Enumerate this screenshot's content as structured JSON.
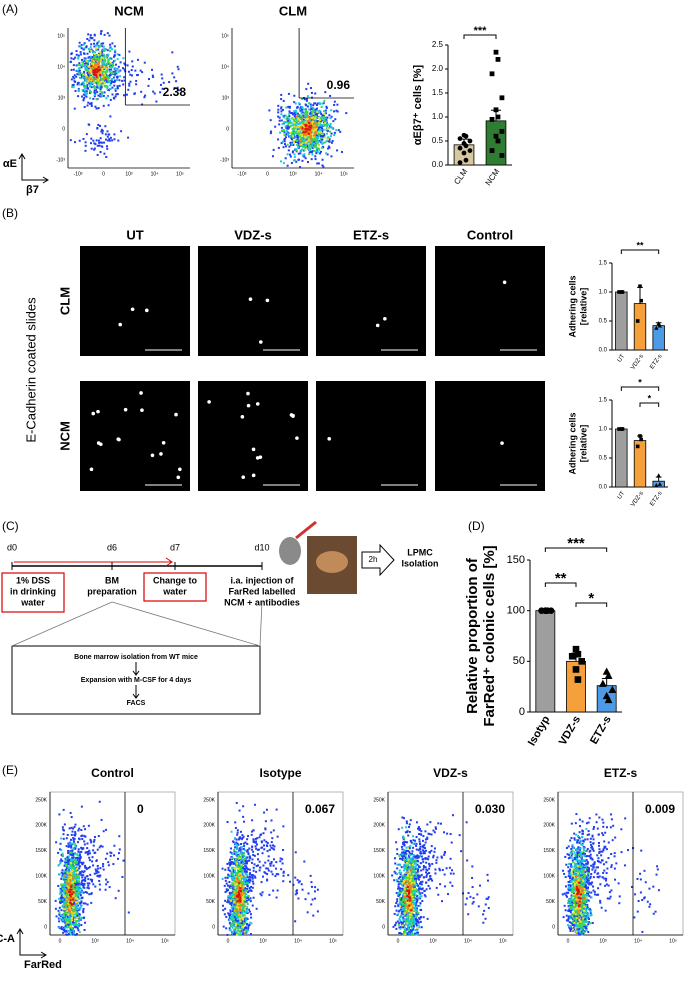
{
  "panel_labels": [
    "(A)",
    "(B)",
    "(C)",
    "(D)",
    "(E)"
  ],
  "panel_a": {
    "flow_titles": [
      "NCM",
      "CLM"
    ],
    "gates": [
      "2.38",
      "0.96"
    ],
    "y_axis_label": "αE",
    "x_axis_label": "β7",
    "yticks": [
      "10⁵",
      "10⁴",
      "10³",
      "0",
      "-10³"
    ],
    "xticks": [
      "-10³",
      "0",
      "10³",
      "10⁴",
      "10⁵"
    ]
  },
  "panel_b": {
    "columns": [
      "UT",
      "VDZ-s",
      "ETZ-s",
      "Control"
    ],
    "rows": [
      "CLM",
      "NCM"
    ],
    "side_label": "E-Cadherin coated slides"
  },
  "panel_c": {
    "days": [
      "d0",
      "d6",
      "d7",
      "d10"
    ],
    "steps": [
      [
        "1% DSS",
        "in drinking",
        "water"
      ],
      [
        "BM",
        "preparation"
      ],
      [
        "Change to",
        "water"
      ],
      [
        "i.a. injection of",
        "FarRed labelled",
        "NCM + antibodies"
      ]
    ],
    "time": "2h",
    "outcome": [
      "LPMC",
      "Isolation"
    ],
    "bm_box": [
      "Bone marrow isolation from WT mice",
      "Expansion with M-CSF for 4 days",
      "FACS"
    ]
  },
  "panel_e": {
    "titles": [
      "Control",
      "Isotype",
      "VDZ-s",
      "ETZ-s"
    ],
    "gates": [
      "0",
      "0.067",
      "0.030",
      "0.009"
    ],
    "y_axis_label": "SSC-A",
    "x_axis_label": "FarRed",
    "yticks": [
      "250K",
      "200K",
      "150K",
      "100K",
      "50K",
      "0"
    ],
    "xticks": [
      "0",
      "10³",
      "10⁴",
      "10⁵"
    ]
  },
  "chart_data": [
    {
      "type": "bar",
      "ylabel": [
        "αEβ7⁺ cells [%]"
      ],
      "categories": [
        "CLM",
        "NCM"
      ],
      "colors": [
        "#d8c8a0",
        "#2e7d32"
      ],
      "values": [
        0.42,
        0.92
      ],
      "errors": [
        0.12,
        0.22
      ],
      "points": [
        [
          0.62,
          0.6,
          0.55,
          0.5,
          0.45,
          0.4,
          0.35,
          0.3,
          0.25,
          0.1,
          0.05
        ],
        [
          2.35,
          2.2,
          1.9,
          1.4,
          1.15,
          1.0,
          0.95,
          0.7,
          0.6,
          0.5,
          0.3,
          0.2
        ]
      ],
      "ylim": [
        0,
        2.5
      ],
      "yticks": [
        {
          "value": 0,
          "label": "0.0"
        },
        {
          "value": 0.5,
          "label": "0.5"
        },
        {
          "value": 1,
          "label": "1.0"
        },
        {
          "value": 1.5,
          "label": "1.5"
        },
        {
          "value": 2,
          "label": "2.0"
        },
        {
          "value": 2.5,
          "label": "2.5"
        }
      ],
      "annotations": [
        "***"
      ]
    },
    {
      "type": "bar",
      "ylabel": [
        "Adhering cells",
        "[relative]"
      ],
      "categories": [
        "UT",
        "VDZ-s",
        "ETZ-s"
      ],
      "colors": [
        "#9e9e9e",
        "#f5a03a",
        "#4d9be6"
      ],
      "values": [
        1.0,
        0.8,
        0.42
      ],
      "errors": [
        0,
        0.28,
        0.05
      ],
      "points": [
        [
          1,
          1,
          1
        ],
        [
          1.1,
          0.85,
          0.5
        ],
        [
          0.46,
          0.42,
          0.38
        ]
      ],
      "ylim": [
        0,
        1.5
      ],
      "yticks": [
        {
          "value": 0,
          "label": "0.0"
        },
        {
          "value": 0.5,
          "label": "0.5"
        },
        {
          "value": 1,
          "label": "1.0"
        },
        {
          "value": 1.5,
          "label": "1.5"
        }
      ],
      "annotations": [
        "**"
      ]
    },
    {
      "type": "bar",
      "ylabel": [
        "Adhering cells",
        "[relative]"
      ],
      "categories": [
        "UT",
        "VDZ-s",
        "ETZ-s"
      ],
      "colors": [
        "#9e9e9e",
        "#f5a03a",
        "#4d9be6"
      ],
      "values": [
        1.0,
        0.8,
        0.1
      ],
      "errors": [
        0,
        0.08,
        0.07
      ],
      "points": [
        [
          1,
          1,
          1
        ],
        [
          0.88,
          0.82,
          0.7
        ],
        [
          0.2,
          0.05,
          0.03
        ]
      ],
      "ylim": [
        0,
        1.5
      ],
      "yticks": [
        {
          "value": 0,
          "label": "0.0"
        },
        {
          "value": 0.5,
          "label": "0.5"
        },
        {
          "value": 1,
          "label": "1.0"
        },
        {
          "value": 1.5,
          "label": "1.5"
        }
      ],
      "annotations": [
        "*",
        "*"
      ]
    },
    {
      "type": "bar",
      "ylabel": [
        "Relative proportion of",
        "FarRed⁺ colonic cells [%]"
      ],
      "categories": [
        "Isotyp",
        "VDZ-s",
        "ETZ-s"
      ],
      "colors": [
        "#9e9e9e",
        "#f5a03a",
        "#4d9be6"
      ],
      "values": [
        100,
        50,
        26
      ],
      "errors": [
        0,
        8,
        7
      ],
      "points": [
        [
          100,
          100,
          100,
          100,
          100,
          100
        ],
        [
          62,
          57,
          55,
          50,
          42,
          32
        ],
        [
          40,
          36,
          28,
          22,
          16,
          12
        ]
      ],
      "ylim": [
        0,
        150
      ],
      "yticks": [
        0,
        50,
        100,
        150
      ],
      "annotations": [
        "***",
        "**",
        "*"
      ]
    }
  ]
}
